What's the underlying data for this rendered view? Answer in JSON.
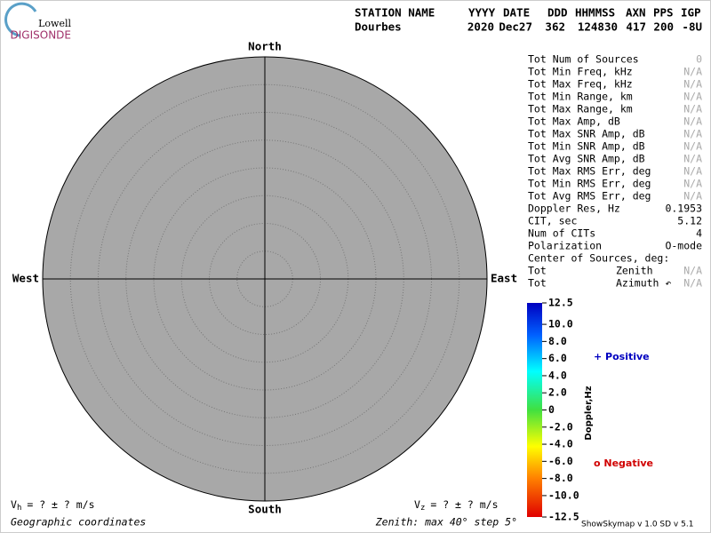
{
  "logo": {
    "top": "Lowell",
    "bottom": "DIGISONDE"
  },
  "header": {
    "labels": [
      "STATION NAME",
      "YYYY",
      "DATE",
      "DDD",
      "HHMMSS",
      "AXN",
      "PPS",
      "IGP"
    ],
    "values": [
      "Dourbes",
      "2020",
      "Dec27",
      "362",
      "124830",
      "417",
      "200",
      "-8U"
    ]
  },
  "directions": {
    "north": "North",
    "south": "South",
    "east": "East",
    "west": "West"
  },
  "table": {
    "rows": [
      [
        "Tot Num of Sources",
        "0"
      ],
      [
        "Tot Min Freq, kHz",
        "N/A"
      ],
      [
        "Tot Max Freq, kHz",
        "N/A"
      ],
      [
        "Tot Min Range, km",
        "N/A"
      ],
      [
        "Tot Max Range, km",
        "N/A"
      ],
      [
        "Tot Max Amp, dB",
        "N/A"
      ],
      [
        "Tot Max SNR Amp, dB",
        "N/A"
      ],
      [
        "Tot Min SNR Amp, dB",
        "N/A"
      ],
      [
        "Tot Avg SNR Amp, dB",
        "N/A"
      ],
      [
        "Tot Max RMS Err, deg",
        "N/A"
      ],
      [
        "Tot Min RMS Err, deg",
        "N/A"
      ],
      [
        "Tot Avg RMS Err, deg",
        "N/A"
      ],
      [
        "Doppler Res, Hz",
        "0.1953"
      ],
      [
        "CIT, sec",
        "5.12"
      ],
      [
        "Num of CITs",
        "4"
      ],
      [
        "Polarization",
        "O-mode"
      ],
      [
        "Center of Sources, deg:",
        ""
      ]
    ],
    "center_rows": [
      [
        "Tot",
        "Zenith",
        "N/A"
      ],
      [
        "Tot",
        "Azimuth ↶",
        "N/A"
      ]
    ]
  },
  "colorbar": {
    "label": "Doppler,Hz",
    "ticks": [
      12.5,
      {
        "value": 10,
        "label": "10.0"
      },
      {
        "value": 8,
        "label": "8.0"
      },
      {
        "value": 6,
        "label": "6.0"
      },
      {
        "value": 4,
        "label": "4.0"
      },
      {
        "value": 2,
        "label": "2.0"
      },
      0,
      {
        "value": -2,
        "label": "-2.0"
      },
      {
        "value": -4,
        "label": "-4.0"
      },
      {
        "value": -6,
        "label": "-6.0"
      },
      {
        "value": -8,
        "label": "-8.0"
      },
      {
        "value": -10,
        "label": "-10.0"
      },
      -12.5
    ]
  },
  "legend": {
    "positive": "+ Positive",
    "negative": "o Negative"
  },
  "footer": {
    "vh": {
      "symbol": "V",
      "sub": "h",
      "text": "=  ? ±  ? m/s"
    },
    "vz": {
      "symbol": "V",
      "sub": "z",
      "text": "=  ? ±  ? m/s"
    },
    "coords": "Geographic coordinates",
    "zenith": "Zenith: max 40°  step 5°",
    "version": "ShowSkymap v 1.0   SD v 5.1"
  }
}
